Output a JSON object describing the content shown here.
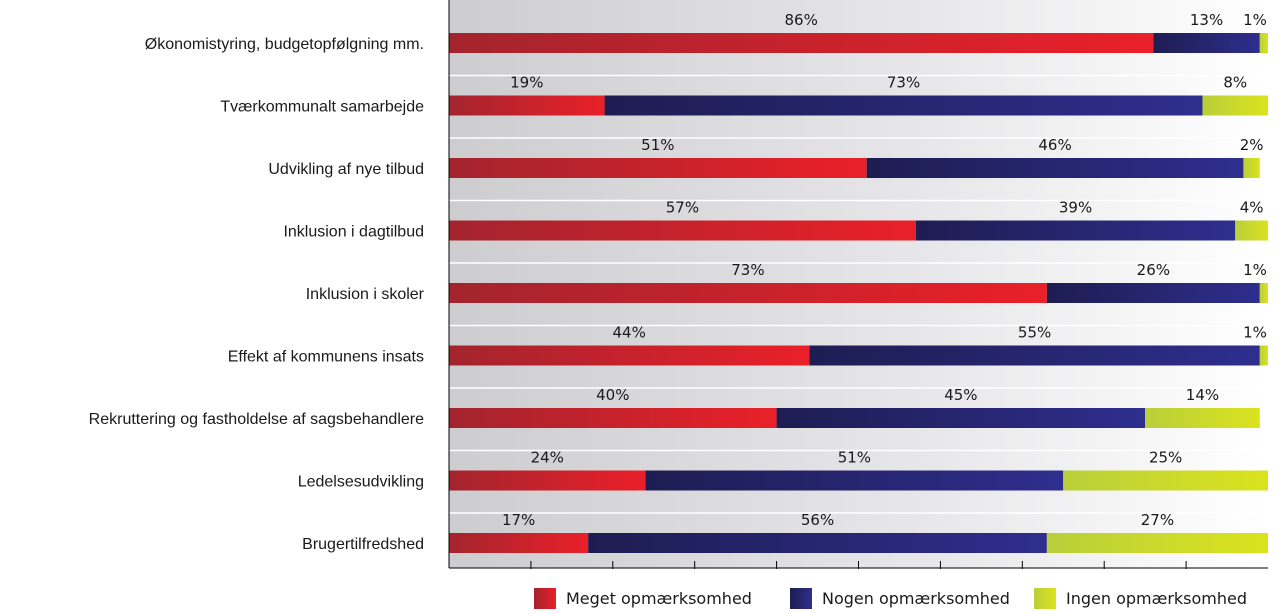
{
  "chart_data": {
    "type": "bar",
    "orientation": "horizontal",
    "stacked": true,
    "categories": [
      "Økonomistyring, budgetopfølgning mm.",
      "Tværkommunalt samarbejde",
      "Udvikling af nye tilbud",
      "Inklusion i dagtilbud",
      "Inklusion i skoler",
      "Effekt af kommunens insats",
      "Rekruttering og fastholdelse af sagsbehandlere",
      "Ledelsesudvikling",
      "Brugertilfredshed"
    ],
    "series": [
      {
        "name": "Meget opmærksomhed",
        "color": "#e3202a",
        "values": [
          86,
          19,
          51,
          57,
          73,
          44,
          40,
          24,
          17
        ]
      },
      {
        "name": "Nogen opmærksomhed",
        "color": "#2b2a7d",
        "values": [
          13,
          73,
          46,
          39,
          26,
          55,
          45,
          51,
          56
        ]
      },
      {
        "name": "Ingen opmærksomhed",
        "color": "#cfdb2a",
        "values": [
          1,
          8,
          2,
          4,
          1,
          1,
          14,
          25,
          27
        ]
      }
    ],
    "value_labels": [
      [
        "86%",
        "13%",
        "1%"
      ],
      [
        "19%",
        "73%",
        "8%"
      ],
      [
        "51%",
        "46%",
        "2%"
      ],
      [
        "57%",
        "39%",
        "4%"
      ],
      [
        "73%",
        "26%",
        "1%"
      ],
      [
        "44%",
        "55%",
        "1%"
      ],
      [
        "40%",
        "45%",
        "14%"
      ],
      [
        "24%",
        "51%",
        "25%"
      ],
      [
        "17%",
        "56%",
        "27%"
      ]
    ],
    "xlim": [
      0,
      100
    ],
    "legend_position": "bottom"
  }
}
